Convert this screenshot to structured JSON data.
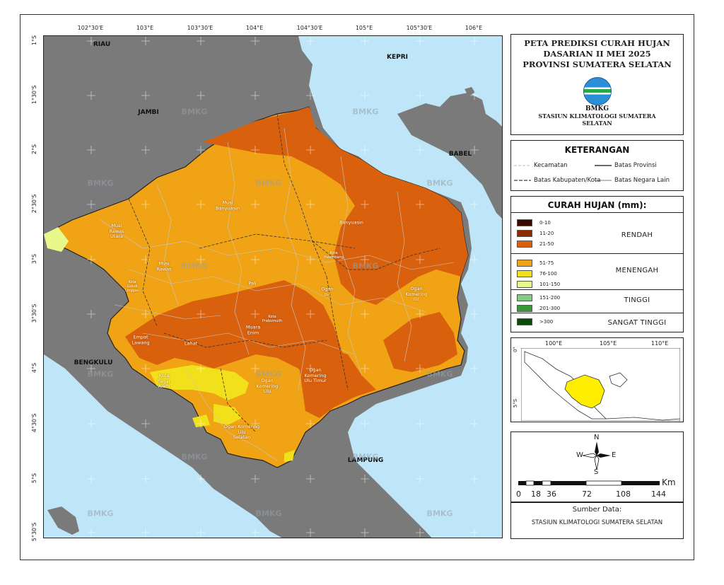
{
  "title": {
    "line1": "PETA PREDIKSI CURAH HUJAN",
    "line2": "DASARIAN II MEI 2025",
    "line3": "PROVINSI SUMATERA SELATAN",
    "logo_text": "BMKG",
    "station_line1": "STASIUN KLIMATOLOGI SUMATERA",
    "station_line2": "SELATAN"
  },
  "keterangan": {
    "title": "KETERANGAN",
    "kecamatan": "Kecamatan",
    "batas_provinsi": "Batas Provinsi",
    "batas_kabupaten": "Batas Kabupaten/Kota",
    "batas_negara": "Batas Negara Lain"
  },
  "rainfall": {
    "title": "CURAH HUJAN (mm):",
    "classes": [
      {
        "label": "0-10",
        "color": "#3a0a00"
      },
      {
        "label": "11-20",
        "color": "#8c2b00"
      },
      {
        "label": "21-50",
        "color": "#d9600d"
      },
      {
        "label": "51-75",
        "color": "#f0a315"
      },
      {
        "label": "76-100",
        "color": "#f2e01a"
      },
      {
        "label": "101-150",
        "color": "#e8f88a"
      },
      {
        "label": "151-200",
        "color": "#7fce7f"
      },
      {
        "label": "201-300",
        "color": "#3a9a3a"
      },
      {
        "label": ">300",
        "color": "#0a4a0a"
      }
    ],
    "categories": {
      "rendah": "RENDAH",
      "menengah": "MENENGAH",
      "tinggi": "TINGGI",
      "sangat_tinggi": "SANGAT TINGGI"
    }
  },
  "inset": {
    "lon_labels": [
      "100°E",
      "105°E",
      "110°E"
    ],
    "lat_labels": [
      "0°",
      "5°S"
    ]
  },
  "scale": {
    "north": "N",
    "south": "S",
    "east": "E",
    "west": "W",
    "unit": "Km",
    "ticks": [
      "0",
      "18",
      "36",
      "72",
      "108",
      "144"
    ]
  },
  "source": {
    "title": "Sumber Data:",
    "text": "STASIUN KLIMATOLOGI SUMATERA SELATAN"
  },
  "map": {
    "lon_labels": [
      "102°30'E",
      "103°E",
      "103°30'E",
      "104°E",
      "104°30'E",
      "105°E",
      "105°30'E",
      "106°E"
    ],
    "lat_labels": [
      "1°S",
      "1°30'S",
      "2°S",
      "2°30'S",
      "3°S",
      "3°30'S",
      "4°S",
      "4°30'S",
      "5°S",
      "5°30'S"
    ],
    "neighbors": {
      "riau": "RIAU",
      "jambi": "JAMBI",
      "kepri": "KEPRI",
      "babel": "BABEL",
      "bengkulu": "BENGKULU",
      "lampung": "LAMPUNG"
    },
    "regencies": {
      "musi_banyuasin": "Musi\nBanyuasin",
      "musi_rawas_utara": "Musi\nRawas\nUtara",
      "musi_rawas": "Musi\nRawas",
      "lubuk_linggau": "Kota\nLubuk\nLinggau",
      "banyuasin": "Banyuasin",
      "palembang": "Kota\nPalembang",
      "pali": "Pali",
      "ogan_ilir": "Ogan\nIlir",
      "ogan_komering_ilir": "Ogan\nKomering\nIlir",
      "prabumulih": "Kota\nPrabumulih",
      "muara_enim": "Muara\nEnim",
      "empat_lawang": "Empat\nLawang",
      "lahat": "Lahat",
      "pagar_alam": "Kota\nPagar\nAlam",
      "okut": "Ogan\nKomering\nUlu Timur",
      "oku": "Ogan\nKomering\nUlu",
      "oku_selatan": "Ogan Komering\nUlu\nSelatan"
    },
    "watermark": "BMKG",
    "colors": {
      "sea": "#bfe6f8",
      "land_other": "#7a7a7a",
      "orange": "#f0a315",
      "dark_orange": "#d9600d",
      "yellow": "#f2e01a",
      "light_yellow": "#e8f88a"
    }
  }
}
